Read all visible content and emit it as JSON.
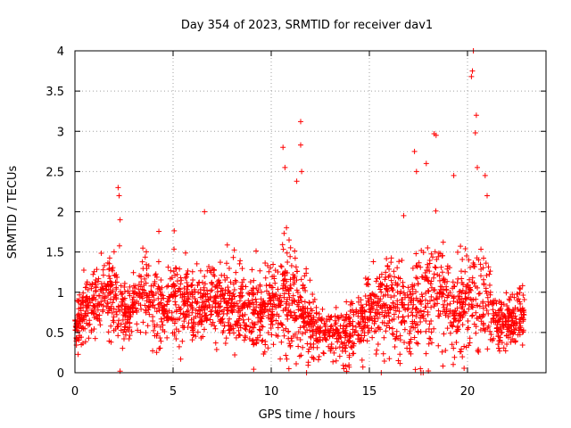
{
  "chart_data": {
    "type": "scatter",
    "title": "Day 354 of 2023, SRMTID for receiver dav1",
    "xlabel": "GPS time / hours",
    "ylabel": "SRMTID / TECUs",
    "xlim": [
      0,
      24
    ],
    "ylim": [
      0,
      4
    ],
    "xticks": [
      0,
      5,
      10,
      15,
      20
    ],
    "yticks": [
      0,
      0.5,
      1,
      1.5,
      2,
      2.5,
      3,
      3.5,
      4
    ],
    "xtick_labels": [
      "0",
      "5",
      "10",
      "15",
      "20"
    ],
    "ytick_labels": [
      "0",
      "0.5",
      "1",
      "1.5",
      "2",
      "2.5",
      "3",
      "3.5",
      "4"
    ],
    "grid": true,
    "marker": "+",
    "marker_color": "#ff0000",
    "time_range_hours": [
      0,
      22.9
    ],
    "profile_hours": [
      0,
      0.5,
      1,
      1.5,
      2,
      2.3,
      2.7,
      3,
      3.5,
      4,
      4.5,
      5,
      5.5,
      6,
      6.5,
      7,
      7.5,
      8,
      8.5,
      9,
      9.5,
      10,
      10.5,
      11,
      11.5,
      12,
      12.5,
      13,
      13.5,
      14,
      14.5,
      15,
      15.5,
      16,
      16.5,
      17,
      17.5,
      18,
      18.5,
      19,
      19.5,
      20,
      20.5,
      21,
      21.5,
      22,
      22.5,
      22.9
    ],
    "profile_mean": [
      0.55,
      0.8,
      0.9,
      0.95,
      0.9,
      0.7,
      0.75,
      0.8,
      1.05,
      0.9,
      0.75,
      0.9,
      0.85,
      0.8,
      0.75,
      0.85,
      0.85,
      0.8,
      0.8,
      0.8,
      0.75,
      0.85,
      0.9,
      0.95,
      0.75,
      0.6,
      0.5,
      0.45,
      0.45,
      0.4,
      0.65,
      0.75,
      0.8,
      0.9,
      0.85,
      0.75,
      0.85,
      0.95,
      1.05,
      0.8,
      0.7,
      0.85,
      0.95,
      0.75,
      0.6,
      0.6,
      0.65,
      0.7
    ],
    "profile_spread": [
      0.25,
      0.35,
      0.4,
      0.4,
      0.5,
      0.45,
      0.35,
      0.35,
      0.4,
      0.45,
      0.4,
      0.45,
      0.45,
      0.4,
      0.4,
      0.45,
      0.45,
      0.4,
      0.4,
      0.4,
      0.4,
      0.45,
      0.55,
      0.6,
      0.5,
      0.35,
      0.3,
      0.3,
      0.3,
      0.3,
      0.4,
      0.4,
      0.45,
      0.5,
      0.55,
      0.55,
      0.6,
      0.7,
      0.7,
      0.5,
      0.45,
      0.55,
      0.6,
      0.45,
      0.3,
      0.3,
      0.3,
      0.3
    ],
    "peaks": [
      {
        "x": 2.2,
        "y": 2.3
      },
      {
        "x": 2.25,
        "y": 2.2
      },
      {
        "x": 2.3,
        "y": 1.9
      },
      {
        "x": 6.6,
        "y": 2.0
      },
      {
        "x": 10.6,
        "y": 2.8
      },
      {
        "x": 10.7,
        "y": 2.55
      },
      {
        "x": 11.5,
        "y": 3.12
      },
      {
        "x": 11.5,
        "y": 2.83
      },
      {
        "x": 11.55,
        "y": 2.5
      },
      {
        "x": 11.3,
        "y": 2.38
      },
      {
        "x": 17.3,
        "y": 2.75
      },
      {
        "x": 17.4,
        "y": 2.5
      },
      {
        "x": 18.3,
        "y": 2.97
      },
      {
        "x": 18.4,
        "y": 2.95
      },
      {
        "x": 17.9,
        "y": 2.6
      },
      {
        "x": 20.3,
        "y": 4.0
      },
      {
        "x": 20.25,
        "y": 3.75
      },
      {
        "x": 20.2,
        "y": 3.68
      },
      {
        "x": 20.45,
        "y": 3.2
      },
      {
        "x": 20.4,
        "y": 2.98
      },
      {
        "x": 20.5,
        "y": 2.55
      },
      {
        "x": 19.3,
        "y": 2.45
      },
      {
        "x": 20.9,
        "y": 2.45
      },
      {
        "x": 21.0,
        "y": 2.2
      },
      {
        "x": 10.9,
        "y": 0.05
      },
      {
        "x": 11.8,
        "y": 0.0
      },
      {
        "x": 13.7,
        "y": 0.05
      },
      {
        "x": 17.6,
        "y": 0.05
      },
      {
        "x": 2.3,
        "y": 0.02
      }
    ]
  }
}
